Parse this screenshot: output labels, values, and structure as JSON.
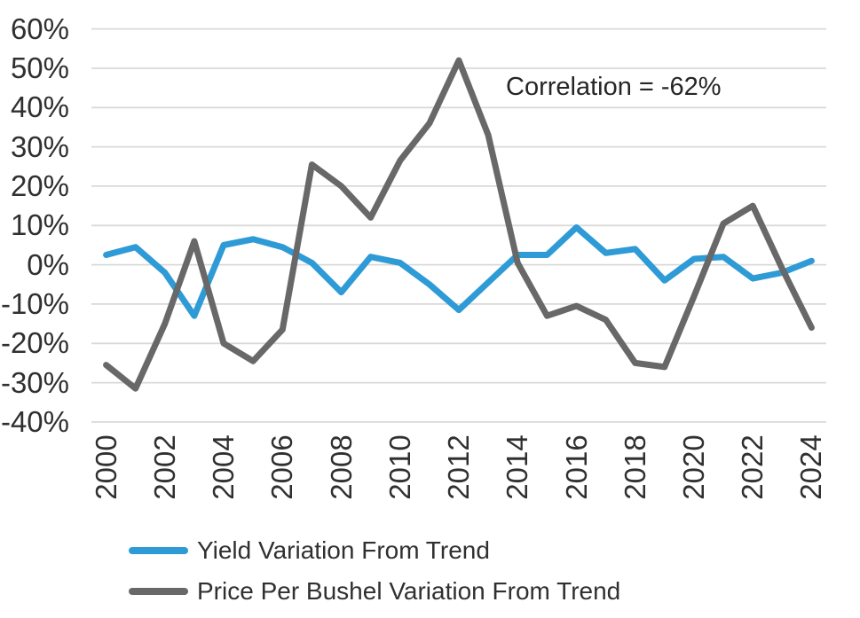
{
  "chart_data": {
    "type": "line",
    "title": "",
    "annotation": "Correlation = -62%",
    "x": [
      2000,
      2001,
      2002,
      2003,
      2004,
      2005,
      2006,
      2007,
      2008,
      2009,
      2010,
      2011,
      2012,
      2013,
      2014,
      2015,
      2016,
      2017,
      2018,
      2019,
      2020,
      2021,
      2022,
      2023,
      2024
    ],
    "x_tick_labels": [
      "2000",
      "2002",
      "2004",
      "2006",
      "2008",
      "2010",
      "2012",
      "2014",
      "2016",
      "2018",
      "2020",
      "2022",
      "2024"
    ],
    "y_tick_labels": [
      "60%",
      "50%",
      "40%",
      "30%",
      "20%",
      "10%",
      "0%",
      "-10%",
      "-20%",
      "-30%",
      "-40%"
    ],
    "y_tick_values": [
      60,
      50,
      40,
      30,
      20,
      10,
      0,
      -10,
      -20,
      -30,
      -40
    ],
    "ylim": [
      -40,
      60
    ],
    "grid": "horizontal",
    "legend_position": "bottom-left",
    "series": [
      {
        "name": "Yield Variation From Trend",
        "color": "#2E9AD6",
        "values": [
          2.5,
          4.5,
          -2,
          -13,
          5,
          6.5,
          4.5,
          0.5,
          -7,
          2,
          0.5,
          -5,
          -11.5,
          -4.5,
          2.5,
          2.5,
          9.5,
          3,
          4,
          -4,
          1.5,
          2,
          -3.5,
          -2,
          1
        ]
      },
      {
        "name": "Price Per Bushel Variation From Trend",
        "color": "#686868",
        "values": [
          -25.5,
          -31.5,
          -15,
          6,
          -20,
          -24.5,
          -16.5,
          25.5,
          20,
          12,
          26.5,
          36,
          52,
          33,
          0.5,
          -13,
          -10.5,
          -14,
          -25,
          -26,
          -8,
          10.5,
          15,
          -1,
          -16
        ]
      }
    ],
    "colors": {
      "grid": "#d9d9d9",
      "text": "#303030",
      "background": "#ffffff"
    }
  }
}
